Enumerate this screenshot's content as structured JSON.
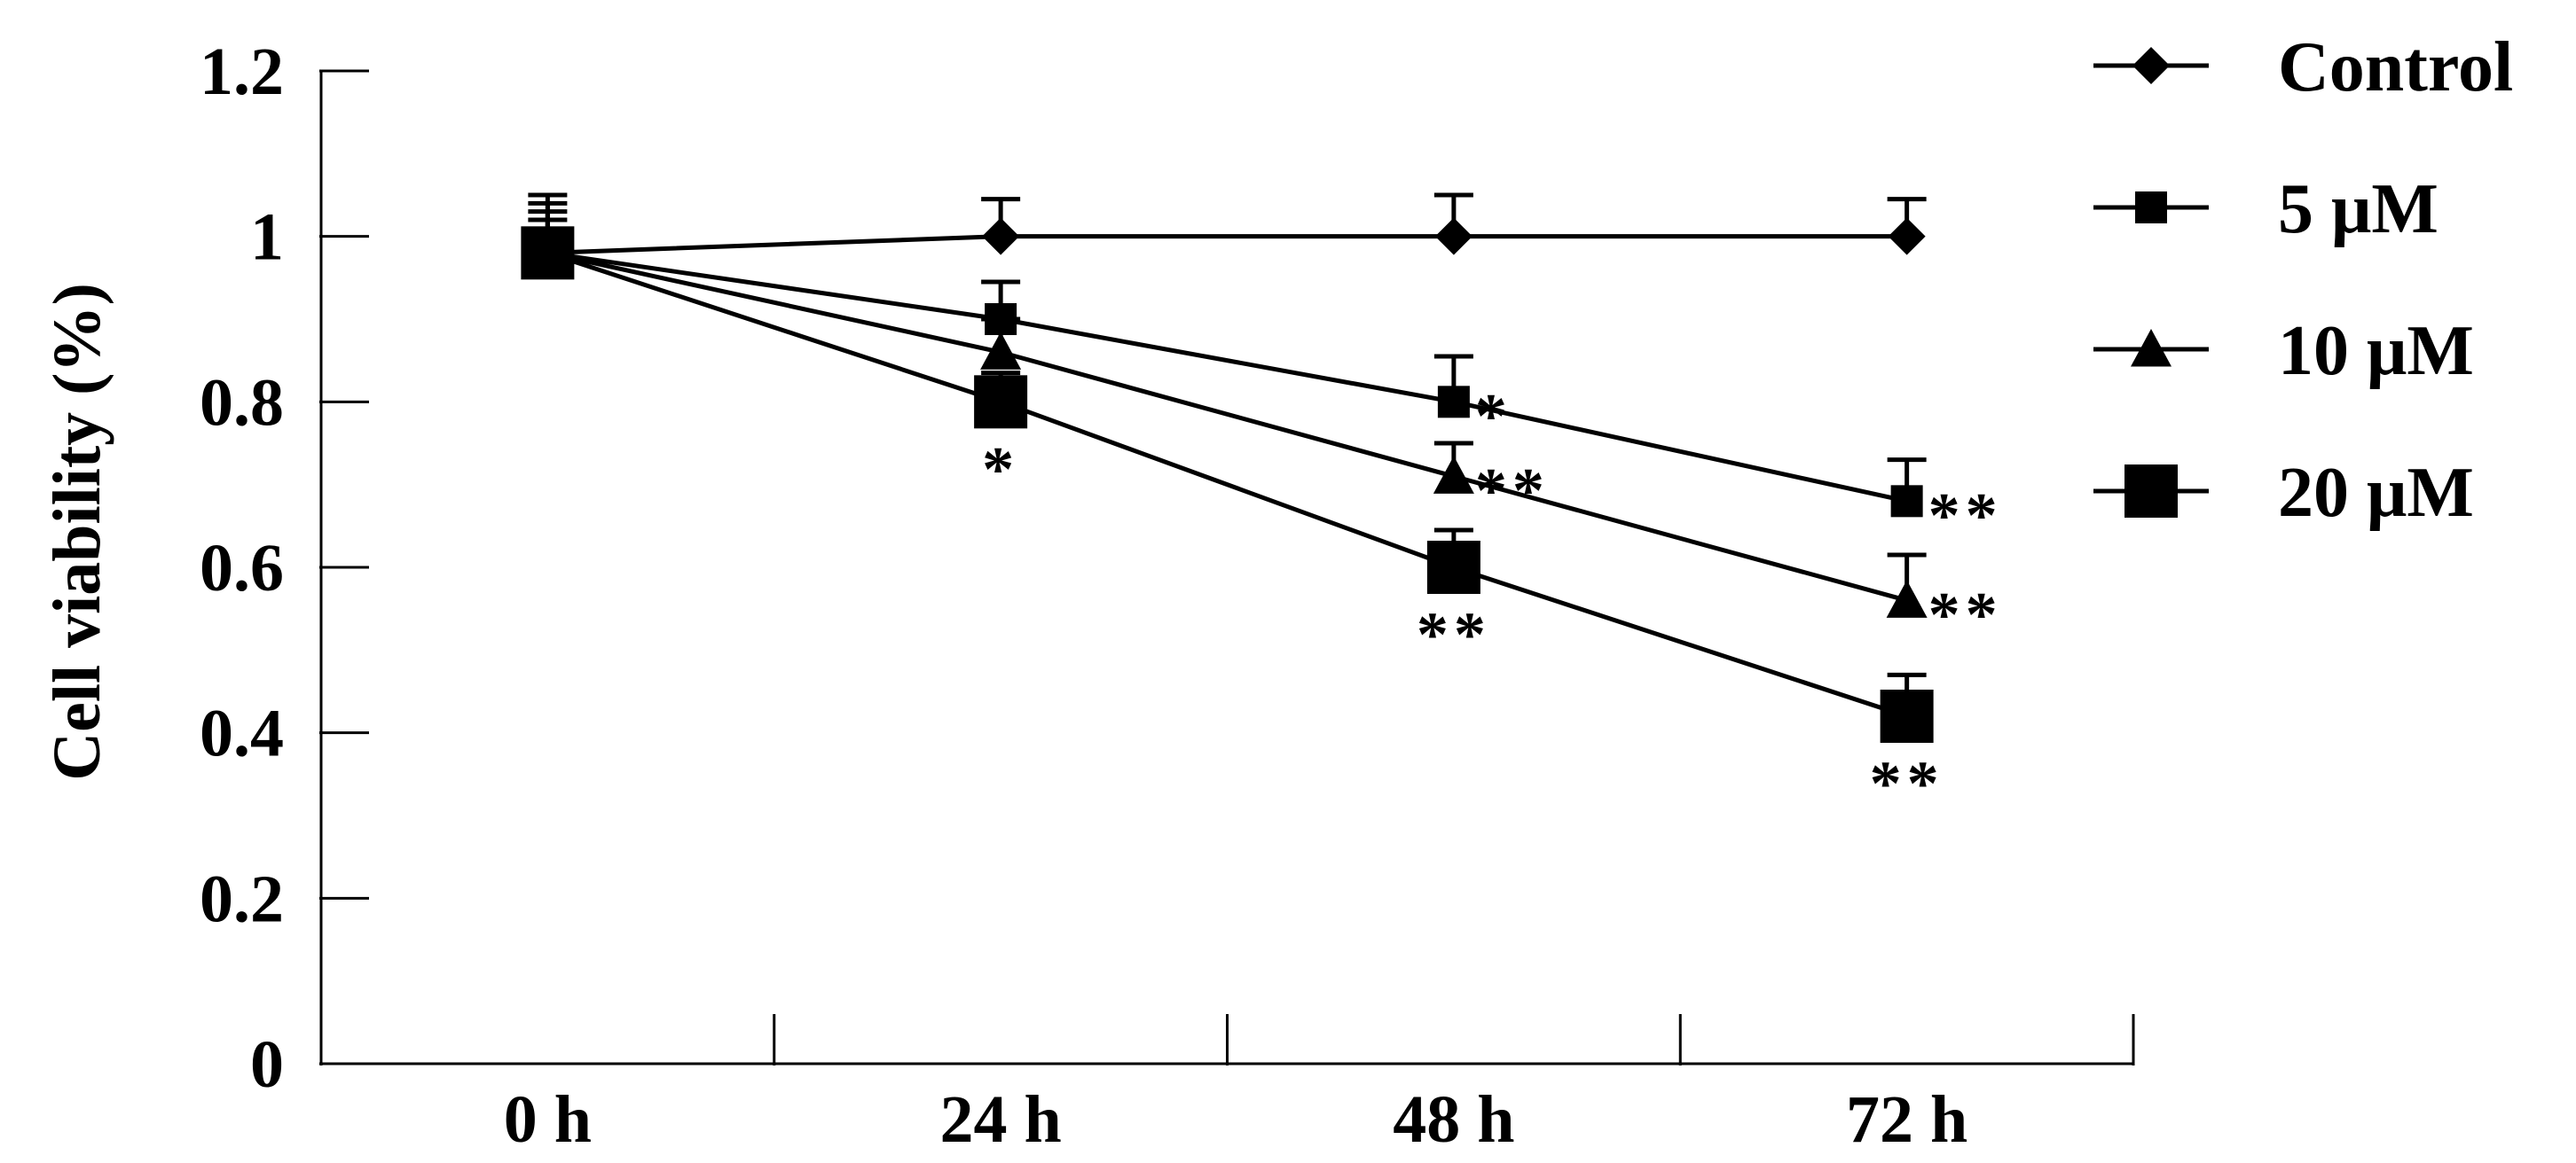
{
  "chart_data": {
    "type": "line",
    "title": "",
    "xlabel": "",
    "ylabel": "Cell viability (%)",
    "categories": [
      "0 h",
      "24 h",
      "48 h",
      "72 h"
    ],
    "y_ticks": [
      "0",
      "0.2",
      "0.4",
      "0.6",
      "0.8",
      "1",
      "1.2"
    ],
    "ylim": [
      0,
      1.2
    ],
    "grid": false,
    "legend_position": "right",
    "series": [
      {
        "name": "Control",
        "marker": "diamond",
        "values": [
          0.98,
          1.0,
          1.0,
          1.0
        ],
        "errors": [
          0.07,
          0.045,
          0.05,
          0.045
        ],
        "annotations": [
          "",
          "",
          "",
          ""
        ]
      },
      {
        "name": "5 μM",
        "marker": "square-small",
        "values": [
          0.98,
          0.9,
          0.8,
          0.68
        ],
        "errors": [
          0.06,
          0.045,
          0.055,
          0.05
        ],
        "annotations": [
          "",
          "",
          "*",
          "**"
        ]
      },
      {
        "name": "10 μM",
        "marker": "triangle",
        "values": [
          0.98,
          0.86,
          0.71,
          0.56
        ],
        "errors": [
          0.05,
          0.04,
          0.04,
          0.055
        ],
        "annotations": [
          "",
          "",
          "**",
          "**"
        ]
      },
      {
        "name": "20 μM",
        "marker": "square-large",
        "values": [
          0.98,
          0.8,
          0.6,
          0.42
        ],
        "errors": [
          0.04,
          0.035,
          0.045,
          0.05
        ],
        "annotations": [
          "",
          "*",
          "**",
          "**"
        ]
      }
    ]
  }
}
